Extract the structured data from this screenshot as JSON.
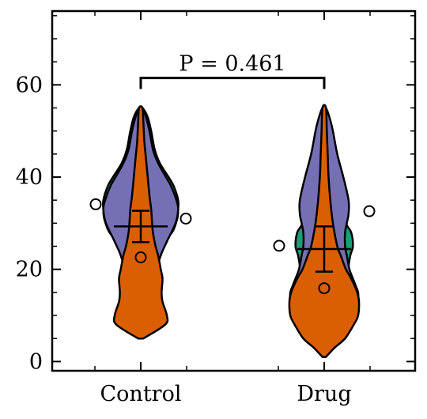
{
  "chart_data": {
    "type": "violin",
    "title": "",
    "xlabel": "",
    "ylabel": "",
    "ylim": [
      -2,
      76
    ],
    "y_ticks": [
      0,
      20,
      40,
      60
    ],
    "y_tick_labels": [
      "0",
      "20",
      "40",
      "60"
    ],
    "categories": [
      "Control",
      "Drug"
    ],
    "series_colors": [
      "#1b9e77",
      "#d95f02",
      "#7570b3"
    ],
    "groups": [
      {
        "name": "Control",
        "mean": 29.3,
        "error": [
          25.9,
          32.7
        ],
        "points": [
          {
            "series": 0,
            "value": 34.1
          },
          {
            "series": 1,
            "value": 22.6
          },
          {
            "series": 2,
            "value": 31.0
          }
        ],
        "violins": [
          {
            "series": 0,
            "profile": [
              [
                5,
                0.2
              ],
              [
                10,
                1.7
              ],
              [
                13,
                2.3
              ],
              [
                15,
                2.0
              ],
              [
                20,
                1.7
              ],
              [
                25,
                2.2
              ],
              [
                28,
                3.6
              ],
              [
                31,
                4.2
              ],
              [
                33,
                4.3
              ],
              [
                35,
                4.3
              ],
              [
                38,
                3.8
              ],
              [
                40,
                3.2
              ],
              [
                43,
                2.2
              ],
              [
                46,
                1.6
              ],
              [
                50,
                1.2
              ],
              [
                53,
                0.8
              ],
              [
                55,
                0.2
              ]
            ]
          },
          {
            "series": 1,
            "profile": [
              [
                5,
                0.3
              ],
              [
                8,
                2.8
              ],
              [
                10,
                3.0
              ],
              [
                13,
                2.5
              ],
              [
                15,
                2.4
              ],
              [
                18,
                2.5
              ],
              [
                20,
                2.3
              ],
              [
                23,
                2.0
              ],
              [
                25,
                1.7
              ],
              [
                28,
                1.4
              ],
              [
                30,
                1.3
              ],
              [
                33,
                1.2
              ],
              [
                36,
                1.0
              ],
              [
                40,
                0.8
              ],
              [
                44,
                0.6
              ],
              [
                48,
                0.4
              ],
              [
                52,
                0.3
              ],
              [
                55,
                0.2
              ]
            ]
          },
          {
            "series": 2,
            "profile": [
              [
                5,
                0.2
              ],
              [
                10,
                1.4
              ],
              [
                13,
                2.1
              ],
              [
                15,
                2.0
              ],
              [
                20,
                1.9
              ],
              [
                23,
                2.3
              ],
              [
                26,
                3.0
              ],
              [
                30,
                4.0
              ],
              [
                33,
                4.3
              ],
              [
                35,
                4.1
              ],
              [
                38,
                3.5
              ],
              [
                40,
                2.9
              ],
              [
                43,
                2.0
              ],
              [
                46,
                1.4
              ],
              [
                50,
                1.0
              ],
              [
                53,
                0.6
              ],
              [
                55,
                0.2
              ]
            ]
          }
        ]
      },
      {
        "name": "Drug",
        "mean": 24.4,
        "error": [
          19.5,
          29.3
        ],
        "points": [
          {
            "series": 0,
            "value": 25.1
          },
          {
            "series": 1,
            "value": 15.9
          },
          {
            "series": 2,
            "value": 32.6
          }
        ],
        "violins": [
          {
            "series": 0,
            "profile": [
              [
                1,
                0.2
              ],
              [
                5,
                0.9
              ],
              [
                10,
                2.0
              ],
              [
                13,
                3.6
              ],
              [
                15,
                3.9
              ],
              [
                18,
                3.2
              ],
              [
                20,
                2.8
              ],
              [
                23,
                3.0
              ],
              [
                25,
                3.3
              ],
              [
                28,
                3.1
              ],
              [
                30,
                2.5
              ],
              [
                35,
                1.8
              ],
              [
                40,
                1.3
              ],
              [
                45,
                0.8
              ],
              [
                50,
                0.5
              ],
              [
                55,
                0.2
              ]
            ]
          },
          {
            "series": 1,
            "profile": [
              [
                1,
                0.2
              ],
              [
                3,
                1.2
              ],
              [
                5,
                2.4
              ],
              [
                8,
                3.4
              ],
              [
                10,
                3.9
              ],
              [
                13,
                4.0
              ],
              [
                15,
                3.8
              ],
              [
                18,
                3.1
              ],
              [
                20,
                2.5
              ],
              [
                23,
                1.9
              ],
              [
                25,
                1.5
              ],
              [
                30,
                1.0
              ],
              [
                35,
                0.7
              ],
              [
                40,
                0.5
              ],
              [
                45,
                0.4
              ],
              [
                50,
                0.3
              ],
              [
                55,
                0.2
              ]
            ]
          },
          {
            "series": 2,
            "profile": [
              [
                10,
                0.2
              ],
              [
                12,
                3.4
              ],
              [
                14,
                3.9
              ],
              [
                16,
                3.7
              ],
              [
                18,
                3.3
              ],
              [
                20,
                2.9
              ],
              [
                23,
                2.6
              ],
              [
                25,
                2.4
              ],
              [
                28,
                2.4
              ],
              [
                30,
                2.6
              ],
              [
                32,
                2.8
              ],
              [
                35,
                2.8
              ],
              [
                40,
                2.2
              ],
              [
                45,
                1.5
              ],
              [
                50,
                1.0
              ],
              [
                53,
                0.6
              ],
              [
                55,
                0.2
              ]
            ]
          }
        ]
      }
    ],
    "annotation": {
      "text": "P = 0.461",
      "y": 61.5,
      "from": "Control",
      "to": "Drug"
    }
  }
}
